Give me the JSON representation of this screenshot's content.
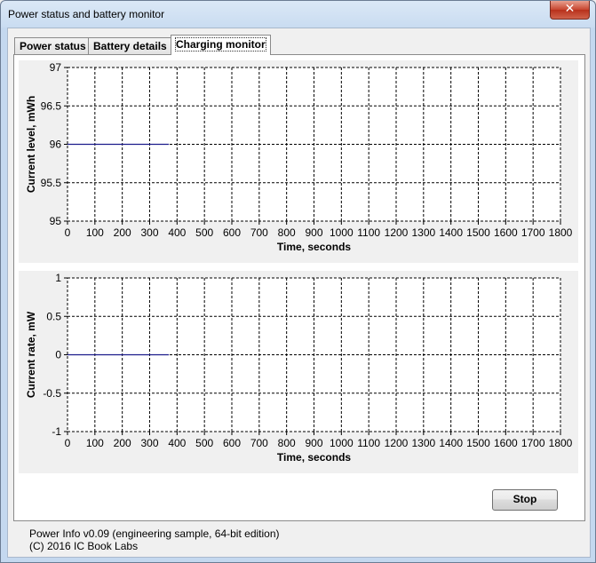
{
  "window": {
    "title": "Power status and battery monitor",
    "close_label": "✕"
  },
  "tabs": [
    {
      "label": "Power status",
      "active": false
    },
    {
      "label": "Battery details",
      "active": false
    },
    {
      "label": "Charging monitor",
      "active": true
    }
  ],
  "stop_label": "Stop",
  "footer": {
    "line1": "Power Info v0.09 (engineering sample, 64-bit edition)",
    "line2": "(C) 2016  IC Book Labs"
  },
  "chart_data": [
    {
      "type": "line",
      "title": "",
      "xlabel": "Time, seconds",
      "ylabel": "Current level,  mWh",
      "xlim": [
        0,
        1800
      ],
      "ylim": [
        95,
        97
      ],
      "x_ticks": [
        0,
        100,
        200,
        300,
        400,
        500,
        600,
        700,
        800,
        900,
        1000,
        1100,
        1200,
        1300,
        1400,
        1500,
        1600,
        1700,
        1800
      ],
      "y_ticks": [
        97,
        96.5,
        96,
        95.5,
        95
      ],
      "y_tick_labels": [
        "97",
        "96.5",
        "96",
        "95.5",
        "95"
      ],
      "grid": true,
      "line_color": "#1c1c8c",
      "series": [
        {
          "x": [
            0,
            370
          ],
          "y": [
            96,
            96
          ]
        }
      ]
    },
    {
      "type": "line",
      "title": "",
      "xlabel": "Time,  seconds",
      "ylabel": "Current rate,  mW",
      "xlim": [
        0,
        1800
      ],
      "ylim": [
        -1,
        1
      ],
      "x_ticks": [
        0,
        100,
        200,
        300,
        400,
        500,
        600,
        700,
        800,
        900,
        1000,
        1100,
        1200,
        1300,
        1400,
        1500,
        1600,
        1700,
        1800
      ],
      "y_ticks": [
        1,
        0.5,
        0,
        -0.5,
        -1
      ],
      "y_tick_labels": [
        "1",
        "0.5",
        "0",
        "-0.5",
        "-1"
      ],
      "grid": true,
      "line_color": "#1c1c8c",
      "series": [
        {
          "x": [
            0,
            370
          ],
          "y": [
            0,
            0
          ]
        }
      ]
    }
  ]
}
